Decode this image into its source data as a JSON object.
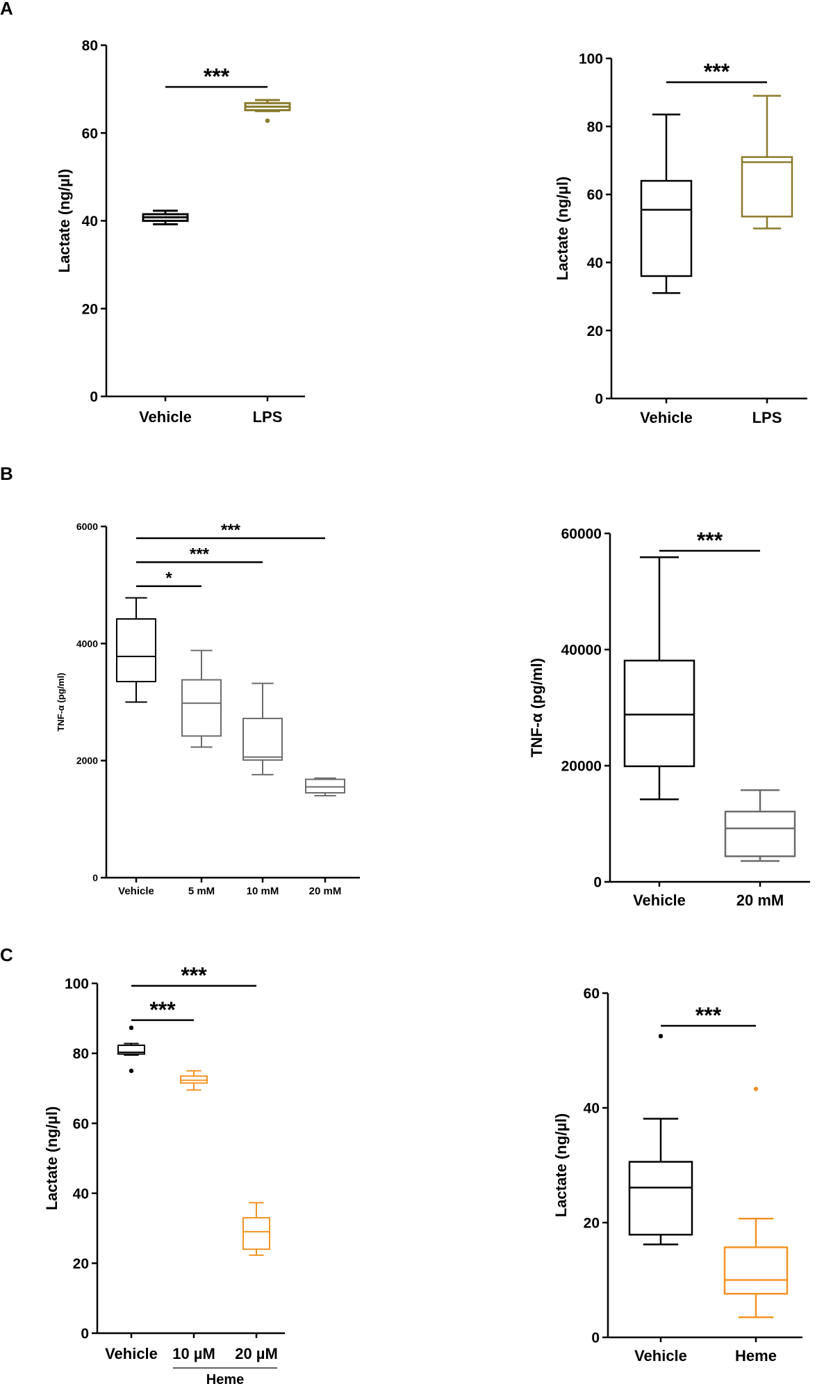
{
  "panel_labels": [
    "A",
    "B",
    "C"
  ],
  "colors": {
    "black": "#000000",
    "olive": "#8a7a2c",
    "gray": "#6b6b6b",
    "orange": "#f39323"
  },
  "chart_data": [
    {
      "id": "A-left",
      "type": "box",
      "ylabel": "Lactate (ng/µl)",
      "ylim": [
        0,
        80
      ],
      "yticks": [
        "0",
        "20",
        "40",
        "60",
        "80"
      ],
      "categories": [
        "Vehicle",
        "LPS"
      ],
      "boxes": [
        {
          "category": "Vehicle",
          "min": 39.2,
          "q1": 40.0,
          "median": 40.8,
          "q3": 41.5,
          "max": 42.3,
          "outliers": [],
          "color": "black"
        },
        {
          "category": "LPS",
          "min": 65.0,
          "q1": 65.2,
          "median": 66.0,
          "q3": 66.8,
          "max": 67.5,
          "outliers": [
            62.8
          ],
          "color": "olive"
        }
      ],
      "significance": [
        {
          "from": 0,
          "to": 1,
          "y": 70.5,
          "label": "***"
        }
      ],
      "subgroup_label": null
    },
    {
      "id": "A-right",
      "type": "box",
      "ylabel": "Lactate (ng/µl)",
      "ylim": [
        0,
        100
      ],
      "yticks": [
        "0",
        "20",
        "40",
        "60",
        "80",
        "100"
      ],
      "categories": [
        "Vehicle",
        "LPS"
      ],
      "boxes": [
        {
          "category": "Vehicle",
          "min": 31,
          "q1": 36,
          "median": 55.5,
          "q3": 64,
          "max": 83.5,
          "outliers": [],
          "color": "black"
        },
        {
          "category": "LPS",
          "min": 50,
          "q1": 53.5,
          "median": 69.5,
          "q3": 71,
          "max": 89,
          "outliers": [],
          "color": "olive"
        }
      ],
      "significance": [
        {
          "from": 0,
          "to": 1,
          "y": 93,
          "label": "***"
        }
      ],
      "subgroup_label": null
    },
    {
      "id": "B-left",
      "type": "box",
      "ylabel": "TNF-α (pg/ml)",
      "ylim": [
        0,
        6000
      ],
      "yticks": [
        "0",
        "2000",
        "4000",
        "6000"
      ],
      "categories": [
        "Vehicle",
        "5 mM",
        "10 mM",
        "20 mM"
      ],
      "boxes": [
        {
          "category": "Vehicle",
          "min": 3000,
          "q1": 3350,
          "median": 3780,
          "q3": 4420,
          "max": 4780,
          "outliers": [],
          "color": "black"
        },
        {
          "category": "5 mM",
          "min": 2230,
          "q1": 2420,
          "median": 2980,
          "q3": 3380,
          "max": 3880,
          "outliers": [],
          "color": "gray"
        },
        {
          "category": "10 mM",
          "min": 1760,
          "q1": 2010,
          "median": 2060,
          "q3": 2720,
          "max": 3320,
          "outliers": [],
          "color": "gray"
        },
        {
          "category": "20 mM",
          "min": 1400,
          "q1": 1450,
          "median": 1550,
          "q3": 1680,
          "max": 1700,
          "outliers": [],
          "color": "gray"
        }
      ],
      "significance": [
        {
          "from": 0,
          "to": 1,
          "y": 4980,
          "label": "*"
        },
        {
          "from": 0,
          "to": 2,
          "y": 5390,
          "label": "***"
        },
        {
          "from": 0,
          "to": 3,
          "y": 5800,
          "label": "***"
        }
      ],
      "subgroup_label": null
    },
    {
      "id": "B-right",
      "type": "box",
      "ylabel": "TNF-α (pg/ml)",
      "ylim": [
        0,
        60000
      ],
      "yticks": [
        "0",
        "20000",
        "40000",
        "60000"
      ],
      "categories": [
        "Vehicle",
        "20 mM"
      ],
      "boxes": [
        {
          "category": "Vehicle",
          "min": 14200,
          "q1": 19900,
          "median": 28800,
          "q3": 38100,
          "max": 55900,
          "outliers": [],
          "color": "black"
        },
        {
          "category": "20 mM",
          "min": 3600,
          "q1": 4400,
          "median": 9200,
          "q3": 12100,
          "max": 15800,
          "outliers": [],
          "color": "gray"
        }
      ],
      "significance": [
        {
          "from": 0,
          "to": 1,
          "y": 57000,
          "label": "***"
        }
      ],
      "subgroup_label": null
    },
    {
      "id": "C-left",
      "type": "box",
      "ylabel": "Lactate (ng/µl)",
      "ylim": [
        0,
        100
      ],
      "yticks": [
        "0",
        "20",
        "40",
        "60",
        "80",
        "100"
      ],
      "categories": [
        "Vehicle",
        "10 µM",
        "20 µM"
      ],
      "boxes": [
        {
          "category": "Vehicle",
          "min": 79.5,
          "q1": 79.8,
          "median": 80.3,
          "q3": 82.3,
          "max": 82.8,
          "outliers": [
            87.3,
            75.0
          ],
          "color": "black"
        },
        {
          "category": "10 µM",
          "min": 69.5,
          "q1": 71.5,
          "median": 72.3,
          "q3": 73.5,
          "max": 75.0,
          "outliers": [],
          "color": "orange"
        },
        {
          "category": "20 µM",
          "min": 22.3,
          "q1": 24.0,
          "median": 29.0,
          "q3": 33.0,
          "max": 37.3,
          "outliers": [],
          "color": "orange"
        }
      ],
      "significance": [
        {
          "from": 0,
          "to": 1,
          "y": 89.5,
          "label": "***"
        },
        {
          "from": 0,
          "to": 2,
          "y": 99.3,
          "label": "***"
        }
      ],
      "subgroup_label": {
        "text": "Heme",
        "from": 1,
        "to": 2
      }
    },
    {
      "id": "C-right",
      "type": "box",
      "ylabel": "Lactate (ng/µl)",
      "ylim": [
        0,
        60
      ],
      "yticks": [
        "0",
        "20",
        "40",
        "60"
      ],
      "categories": [
        "Vehicle",
        "Heme"
      ],
      "boxes": [
        {
          "category": "Vehicle",
          "min": 16.2,
          "q1": 17.9,
          "median": 26.1,
          "q3": 30.6,
          "max": 38.1,
          "outliers": [
            52.5
          ],
          "color": "black"
        },
        {
          "category": "Heme",
          "min": 3.5,
          "q1": 7.6,
          "median": 10.0,
          "q3": 15.7,
          "max": 20.7,
          "outliers": [
            43.3
          ],
          "color": "orange"
        }
      ],
      "significance": [
        {
          "from": 0,
          "to": 1,
          "y": 54.3,
          "label": "***"
        }
      ],
      "subgroup_label": null
    }
  ]
}
